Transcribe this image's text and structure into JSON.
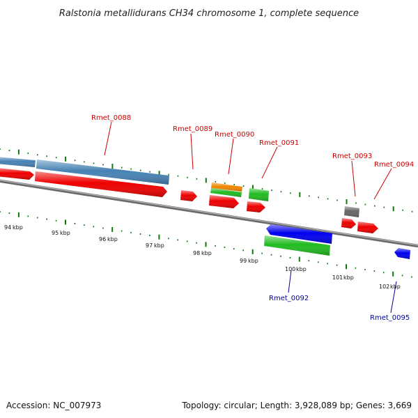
{
  "title": "Ralstonia metallidurans CH34 chromosome 1, complete sequence",
  "accession": "Accession: NC_007973",
  "summary": "Topology: circular; Length: 3,928,089 bp; Genes: 3,669",
  "colors": {
    "gene_forward": "#ee0000",
    "gene_reverse": "#0000ee",
    "cds_steelblue": "#4682b4",
    "cds_green": "#22bb22",
    "cds_orange": "#ee8800",
    "cds_gray": "#666666",
    "backbone": "#888888",
    "tick": "#117711",
    "label_forward": "#cc0000",
    "label_reverse": "#000099"
  },
  "scale": {
    "unit": "kbp",
    "major_ticks_kbp": [
      94,
      95,
      96,
      97,
      98,
      99,
      100,
      101,
      102
    ]
  },
  "forward_labels": [
    "Rmet_0088",
    "Rmet_0089",
    "Rmet_0090",
    "Rmet_0091",
    "Rmet_0093",
    "Rmet_0094"
  ],
  "reverse_labels": [
    "Rmet_0092",
    "Rmet_0095"
  ]
}
